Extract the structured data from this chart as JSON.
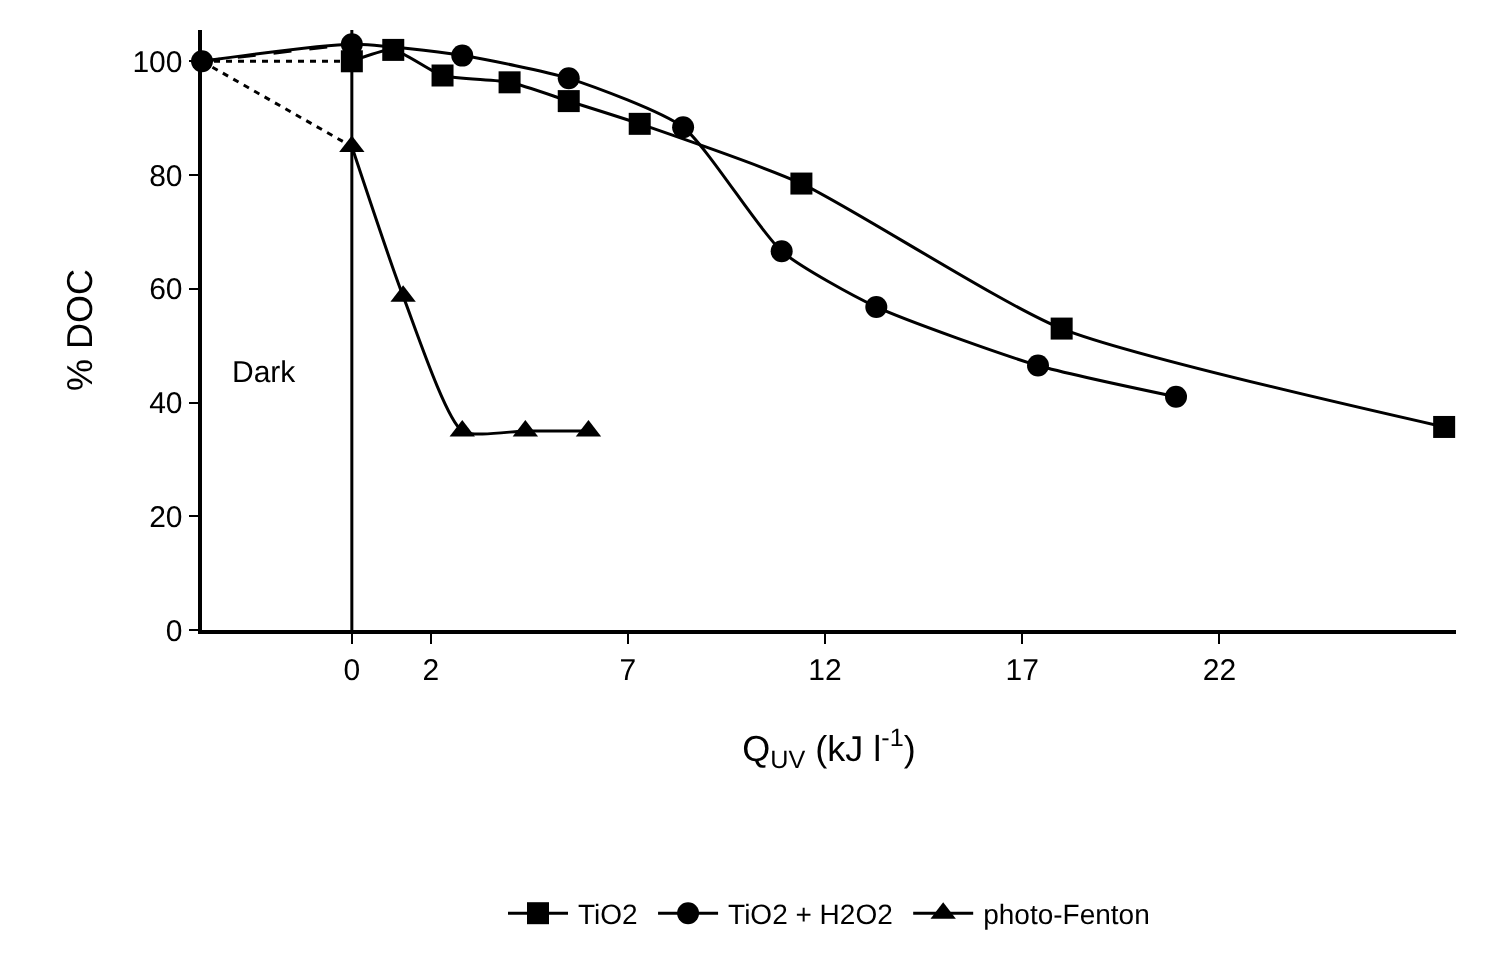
{
  "chart_data": {
    "type": "line",
    "xlabel": "Q$_{UV}$ (kJ l$^{-1}$)",
    "ylabel": "% DOC",
    "xlim": [
      -3.8,
      28
    ],
    "xticks": [
      0,
      2,
      7,
      12,
      17,
      22
    ],
    "ylim": [
      0,
      105.5
    ],
    "yticks": [
      0,
      20,
      40,
      60,
      80,
      100
    ],
    "legend": "bottom",
    "annotations": [
      "Dark"
    ],
    "ref_lines": [
      {
        "axis": "x",
        "value": 0,
        "color": "#000000",
        "line_style": "solid"
      }
    ],
    "series": [
      {
        "name": "TiO2",
        "color": "#000000",
        "marker": "square",
        "line_style": "solid",
        "x": [
          0,
          1.05,
          2.3,
          4.0,
          5.5,
          7.3,
          11.4,
          18.0,
          27.7
        ],
        "values": [
          100,
          102,
          97.5,
          96.3,
          93,
          89,
          78.5,
          53,
          35.7
        ]
      },
      {
        "name": "TiO2 + H2O2",
        "color": "#000000",
        "marker": "circle",
        "line_style": "solid",
        "x": [
          -3.8,
          0,
          2.8,
          5.5,
          8.4,
          10.9,
          13.3,
          17.4,
          20.9
        ],
        "values": [
          100,
          103,
          101,
          97,
          88.4,
          66.6,
          56.8,
          46.5,
          41
        ]
      },
      {
        "name": "photo-Fenton",
        "color": "#000000",
        "marker": "triangle",
        "line_style": "solid",
        "x": [
          0,
          1.3,
          2.8,
          4.4,
          6.0
        ],
        "values": [
          85,
          58.7,
          35,
          35,
          35
        ]
      },
      {
        "color": "#000000",
        "marker": "none",
        "line_style": "dotted",
        "x": [
          -3.8,
          0
        ],
        "values": [
          100,
          100
        ]
      },
      {
        "color": "#000000",
        "marker": "none",
        "line_style": "dashed",
        "x": [
          -3.8,
          0
        ],
        "values": [
          100,
          103
        ]
      },
      {
        "color": "#000000",
        "marker": "none",
        "line_style": "dotted",
        "x": [
          -3.8,
          0
        ],
        "values": [
          100,
          85
        ]
      }
    ]
  }
}
